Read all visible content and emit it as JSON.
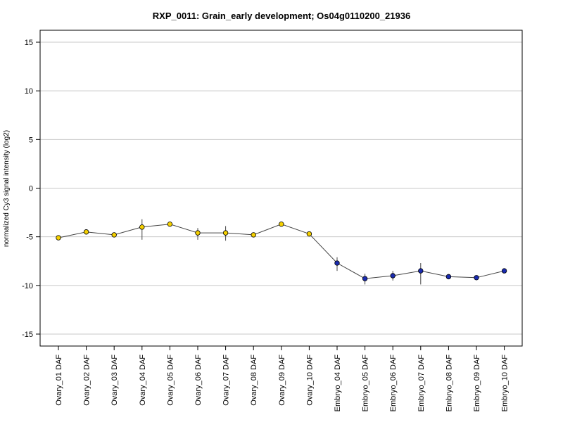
{
  "chart_data": {
    "type": "line",
    "title": "RXP_0011: Grain_early development; Os04g0110200_21936",
    "xlabel": "",
    "ylabel": "normalized Cy3 signal intensity (log2)",
    "ylim": [
      -16,
      16
    ],
    "yticks": [
      -15,
      -10,
      -5,
      0,
      5,
      10,
      15
    ],
    "grid": true,
    "categories": [
      "Ovary_01 DAF",
      "Ovary_02 DAF",
      "Ovary_03 DAF",
      "Ovary_04 DAF",
      "Ovary_05 DAF",
      "Ovary_06 DAF",
      "Ovary_07 DAF",
      "Ovary_08 DAF",
      "Ovary_09 DAF",
      "Ovary_10 DAF",
      "Embryo_04 DAF",
      "Embryo_05 DAF",
      "Embryo_06 DAF",
      "Embryo_07 DAF",
      "Embryo_08 DAF",
      "Embryo_09 DAF",
      "Embryo_10 DAF"
    ],
    "series": [
      {
        "values": [
          -5.1,
          -4.5,
          -4.8,
          -4.0,
          -3.7,
          -4.6,
          -4.6,
          -4.8,
          -3.7,
          -4.7,
          -7.7,
          -9.3,
          -9.0,
          -8.5,
          -9.1,
          -9.2,
          -8.5
        ],
        "error_low": [
          -5.1,
          -4.5,
          -4.8,
          -5.3,
          -3.7,
          -5.3,
          -5.4,
          -4.8,
          -3.7,
          -4.7,
          -8.5,
          -9.9,
          -9.5,
          -9.9,
          -9.1,
          -9.2,
          -8.5
        ],
        "error_high": [
          -5.1,
          -4.5,
          -4.8,
          -3.2,
          -3.7,
          -4.1,
          -3.9,
          -4.8,
          -3.7,
          -4.7,
          -7.1,
          -8.8,
          -8.5,
          -7.7,
          -9.1,
          -9.2,
          -8.5
        ],
        "point_colors": [
          "#f5d000",
          "#f5d000",
          "#f5d000",
          "#f5d000",
          "#f5d000",
          "#f5d000",
          "#f5d000",
          "#f5d000",
          "#f5d000",
          "#f5d000",
          "#1a2bb0",
          "#1a2bb0",
          "#1a2bb0",
          "#1a2bb0",
          "#1a2bb0",
          "#1a2bb0",
          "#1a2bb0"
        ]
      }
    ]
  }
}
